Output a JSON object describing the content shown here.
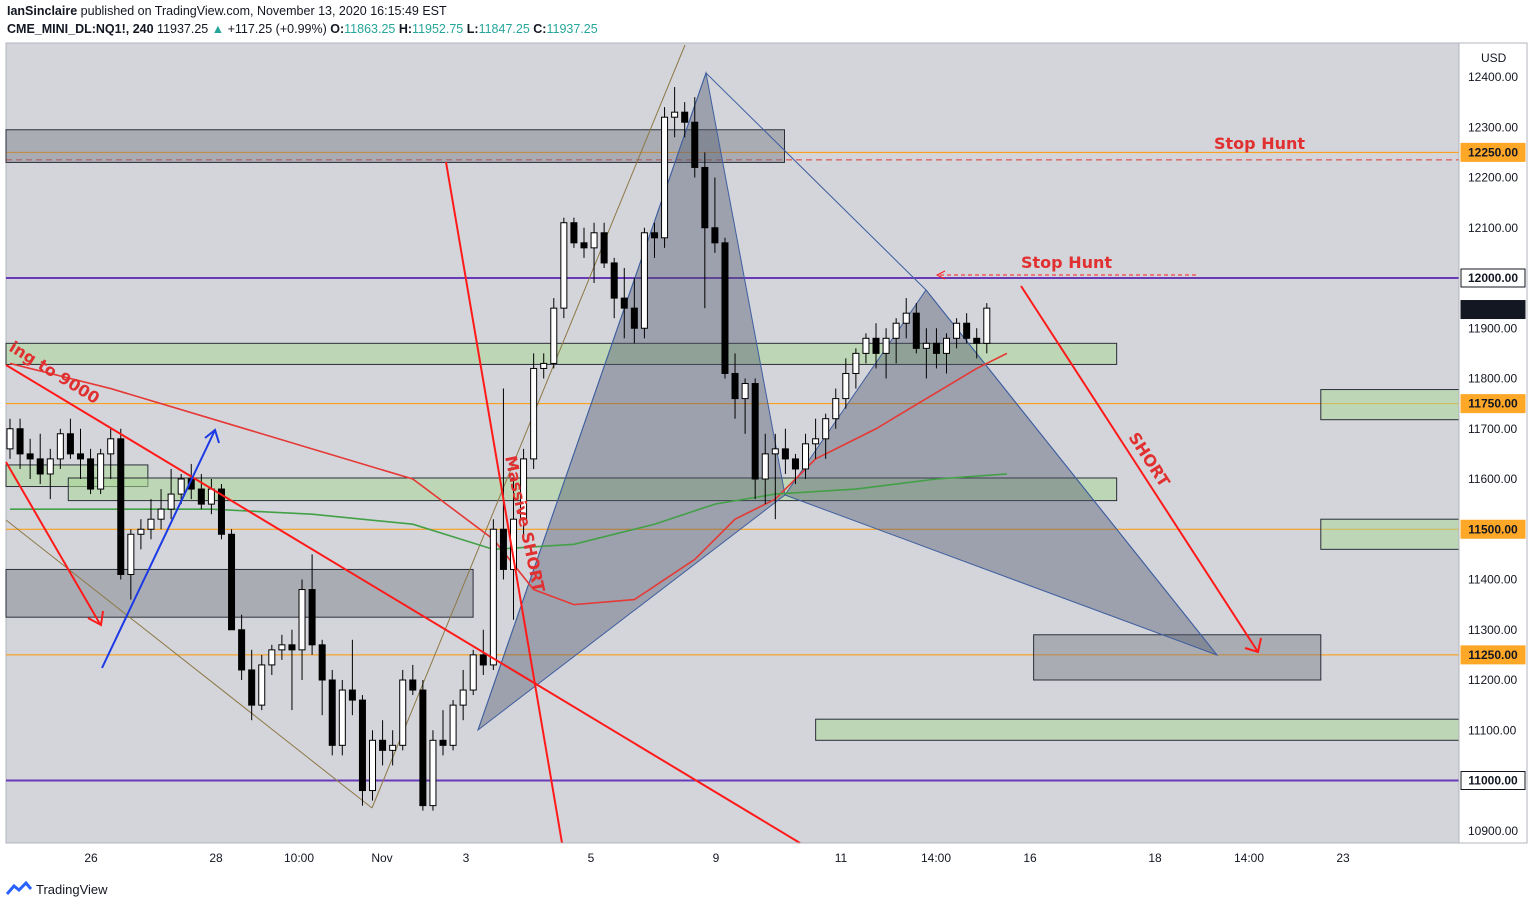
{
  "header": {
    "author": "IanSinclaire",
    "published_text": "published on TradingView.com, November 13, 2020 16:15:49 EST",
    "symbol": "CME_MINI_DL:NQ1!, 240",
    "last": "11937.25",
    "change_arrow": "▲",
    "change": "+117.25 (+0.99%)",
    "open_label": "O:",
    "open": "11863.25",
    "high_label": "H:",
    "high": "11952.75",
    "low_label": "L:",
    "low": "11847.25",
    "close_label": "C:",
    "close": "11937.25"
  },
  "footer": {
    "brand": "TradingView"
  },
  "chart_data": {
    "type": "candlestick",
    "currency": "USD",
    "ylim": [
      10860,
      12470
    ],
    "y_ticks": [
      12400,
      12300,
      12200,
      12100,
      11900,
      11800,
      11700,
      11600,
      11400,
      11300,
      11200,
      11100,
      10900
    ],
    "x_ticks": [
      "26",
      "28",
      "10:00",
      "Nov",
      "3",
      "5",
      "9",
      "11",
      "14:00",
      "16",
      "18",
      "14:00",
      "23"
    ],
    "price_tags": [
      {
        "value": 12250,
        "label": "12250.00",
        "color": "#ffa726"
      },
      {
        "value": 12000,
        "label": "12000.00",
        "color": "#ffffff"
      },
      {
        "value": 11937.25,
        "label": "11937.25",
        "color": "#131722"
      },
      {
        "value": 11750,
        "label": "11750.00",
        "color": "#ffa726"
      },
      {
        "value": 11500,
        "label": "11500.00",
        "color": "#ffa726"
      },
      {
        "value": 11250,
        "label": "11250.00",
        "color": "#ffa726"
      },
      {
        "value": 11000,
        "label": "11000.00",
        "color": "#ffffff"
      }
    ],
    "horizontal_levels": [
      {
        "value": 12000,
        "color": "#673ab7"
      },
      {
        "value": 11000,
        "color": "#673ab7"
      },
      {
        "value": 12250,
        "color": "#ff9800"
      },
      {
        "value": 11750,
        "color": "#ff9800"
      },
      {
        "value": 11500,
        "color": "#ff9800"
      },
      {
        "value": 11250,
        "color": "#ff9800"
      },
      {
        "value": 12235,
        "color": "#e53935"
      }
    ],
    "zones": [
      {
        "kind": "supply",
        "top": 12295,
        "bottom": 12230,
        "x0": 0,
        "x1": 225
      },
      {
        "kind": "supply",
        "top": 11420,
        "bottom": 11325,
        "x0": 0,
        "x1": 135
      },
      {
        "kind": "supply",
        "top": 11290,
        "bottom": 11200,
        "x0": 297,
        "x1": 380
      },
      {
        "kind": "demand",
        "top": 11870,
        "bottom": 11828,
        "x0": 0,
        "x1": 321
      },
      {
        "kind": "demand",
        "top": 11628,
        "bottom": 11585,
        "x0": 0,
        "x1": 41
      },
      {
        "kind": "demand",
        "top": 11602,
        "bottom": 11557,
        "x0": 18,
        "x1": 321
      },
      {
        "kind": "demand",
        "top": 11778,
        "bottom": 11718,
        "x0": 380,
        "x1": 420
      },
      {
        "kind": "demand",
        "top": 11520,
        "bottom": 11460,
        "x0": 380,
        "x1": 420
      },
      {
        "kind": "demand",
        "top": 11122,
        "bottom": 11080,
        "x0": 234,
        "x1": 420
      }
    ],
    "candles": [
      [
        11660,
        11720,
        11640,
        11700
      ],
      [
        11700,
        11720,
        11620,
        11650
      ],
      [
        11650,
        11680,
        11600,
        11640
      ],
      [
        11640,
        11690,
        11590,
        11610
      ],
      [
        11610,
        11660,
        11560,
        11640
      ],
      [
        11640,
        11700,
        11620,
        11690
      ],
      [
        11690,
        11720,
        11640,
        11650
      ],
      [
        11650,
        11700,
        11600,
        11640
      ],
      [
        11640,
        11660,
        11570,
        11580
      ],
      [
        11580,
        11660,
        11570,
        11650
      ],
      [
        11650,
        11700,
        11600,
        11680
      ],
      [
        11680,
        11700,
        11400,
        11410
      ],
      [
        11410,
        11500,
        11360,
        11490
      ],
      [
        11490,
        11520,
        11460,
        11500
      ],
      [
        11500,
        11560,
        11480,
        11520
      ],
      [
        11520,
        11580,
        11500,
        11540
      ],
      [
        11540,
        11620,
        11520,
        11570
      ],
      [
        11570,
        11610,
        11550,
        11600
      ],
      [
        11600,
        11630,
        11560,
        11580
      ],
      [
        11580,
        11610,
        11540,
        11550
      ],
      [
        11550,
        11600,
        11530,
        11580
      ],
      [
        11580,
        11590,
        11480,
        11490
      ],
      [
        11490,
        11500,
        11300,
        11300
      ],
      [
        11300,
        11330,
        11200,
        11220
      ],
      [
        11220,
        11260,
        11120,
        11150
      ],
      [
        11150,
        11250,
        11140,
        11230
      ],
      [
        11230,
        11270,
        11210,
        11260
      ],
      [
        11260,
        11290,
        11240,
        11270
      ],
      [
        11270,
        11300,
        11140,
        11260
      ],
      [
        11260,
        11400,
        11200,
        11380
      ],
      [
        11380,
        11450,
        11250,
        11270
      ],
      [
        11270,
        11280,
        11130,
        11200
      ],
      [
        11200,
        11220,
        11050,
        11070
      ],
      [
        11070,
        11200,
        11050,
        11180
      ],
      [
        11180,
        11280,
        11130,
        11160
      ],
      [
        11160,
        11170,
        10950,
        10980
      ],
      [
        10980,
        11100,
        10960,
        11080
      ],
      [
        11080,
        11120,
        11030,
        11060
      ],
      [
        11060,
        11100,
        11030,
        11070
      ],
      [
        11070,
        11220,
        11060,
        11200
      ],
      [
        11200,
        11230,
        11170,
        11180
      ],
      [
        11180,
        11200,
        10940,
        10950
      ],
      [
        10950,
        11100,
        10940,
        11080
      ],
      [
        11080,
        11140,
        11050,
        11070
      ],
      [
        11070,
        11160,
        11060,
        11150
      ],
      [
        11150,
        11220,
        11120,
        11180
      ],
      [
        11180,
        11260,
        11170,
        11250
      ],
      [
        11250,
        11300,
        11210,
        11230
      ],
      [
        11230,
        11520,
        11220,
        11500
      ],
      [
        11500,
        11780,
        11400,
        11420
      ],
      [
        11420,
        11600,
        11320,
        11520
      ],
      [
        11520,
        11660,
        11480,
        11640
      ],
      [
        11640,
        11850,
        11620,
        11820
      ],
      [
        11820,
        11850,
        11800,
        11830
      ],
      [
        11830,
        11960,
        11820,
        11940
      ],
      [
        11940,
        12120,
        11920,
        12110
      ],
      [
        12110,
        12120,
        12060,
        12070
      ],
      [
        12070,
        12100,
        12040,
        12060
      ],
      [
        12060,
        12110,
        11990,
        12090
      ],
      [
        12090,
        12110,
        12020,
        12030
      ],
      [
        12030,
        12040,
        11920,
        11960
      ],
      [
        11960,
        12020,
        11880,
        11940
      ],
      [
        11940,
        12000,
        11870,
        11900
      ],
      [
        11900,
        12100,
        11880,
        12090
      ],
      [
        12090,
        12110,
        12040,
        12080
      ],
      [
        12080,
        12340,
        12060,
        12320
      ],
      [
        12320,
        12380,
        12280,
        12330
      ],
      [
        12330,
        12350,
        12280,
        12310
      ],
      [
        12310,
        12360,
        12200,
        12220
      ],
      [
        12220,
        12250,
        11940,
        12100
      ],
      [
        12100,
        12200,
        12050,
        12070
      ],
      [
        12070,
        12080,
        11800,
        11810
      ],
      [
        11810,
        11850,
        11720,
        11760
      ],
      [
        11760,
        11800,
        11690,
        11790
      ],
      [
        11790,
        11800,
        11560,
        11600
      ],
      [
        11600,
        11690,
        11550,
        11650
      ],
      [
        11650,
        11690,
        11520,
        11660
      ],
      [
        11660,
        11700,
        11610,
        11640
      ],
      [
        11640,
        11650,
        11590,
        11620
      ],
      [
        11620,
        11690,
        11600,
        11670
      ],
      [
        11670,
        11720,
        11640,
        11680
      ],
      [
        11680,
        11730,
        11640,
        11720
      ],
      [
        11720,
        11780,
        11700,
        11760
      ],
      [
        11760,
        11840,
        11740,
        11810
      ],
      [
        11810,
        11860,
        11780,
        11850
      ],
      [
        11850,
        11890,
        11830,
        11880
      ],
      [
        11880,
        11910,
        11820,
        11850
      ],
      [
        11850,
        11900,
        11800,
        11880
      ],
      [
        11880,
        11920,
        11830,
        11910
      ],
      [
        11910,
        11960,
        11880,
        11930
      ],
      [
        11930,
        11950,
        11850,
        11860
      ],
      [
        11860,
        11900,
        11800,
        11870
      ],
      [
        11870,
        11900,
        11820,
        11850
      ],
      [
        11850,
        11890,
        11810,
        11880
      ],
      [
        11880,
        11920,
        11860,
        11910
      ],
      [
        11910,
        11930,
        11870,
        11880
      ],
      [
        11880,
        11900,
        11840,
        11870
      ],
      [
        11870,
        11950,
        11850,
        11940
      ]
    ],
    "moving_averages": [
      {
        "name": "MA fast",
        "color": "#e53935",
        "points": [
          [
            0,
            11830
          ],
          [
            10,
            11780
          ],
          [
            20,
            11720
          ],
          [
            30,
            11660
          ],
          [
            40,
            11600
          ],
          [
            48,
            11480
          ],
          [
            52,
            11380
          ],
          [
            56,
            11350
          ],
          [
            62,
            11360
          ],
          [
            68,
            11440
          ],
          [
            72,
            11520
          ],
          [
            76,
            11560
          ],
          [
            80,
            11640
          ],
          [
            86,
            11700
          ],
          [
            91,
            11760
          ],
          [
            96,
            11820
          ],
          [
            99,
            11850
          ]
        ]
      },
      {
        "name": "MA slow",
        "color": "#43a047",
        "points": [
          [
            0,
            11540
          ],
          [
            10,
            11540
          ],
          [
            20,
            11540
          ],
          [
            30,
            11530
          ],
          [
            40,
            11510
          ],
          [
            48,
            11460
          ],
          [
            56,
            11470
          ],
          [
            64,
            11510
          ],
          [
            70,
            11550
          ],
          [
            76,
            11570
          ],
          [
            84,
            11580
          ],
          [
            92,
            11600
          ],
          [
            99,
            11610
          ]
        ]
      }
    ],
    "annotations": [
      "Stop Hunt",
      "Stop Hunt",
      "SHORT",
      "Massive SHORT",
      "ing to 9000"
    ]
  }
}
